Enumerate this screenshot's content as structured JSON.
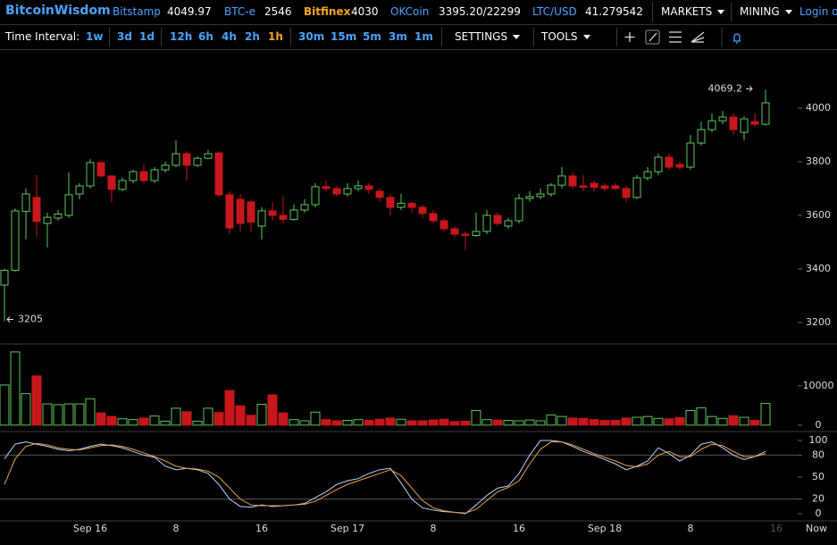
{
  "header": {
    "brand": "BitcoinWisdom",
    "tickers": [
      {
        "name": "Bitstamp",
        "price": "4049.97"
      },
      {
        "name": "BTC-e",
        "price": "2546"
      },
      {
        "name": "Bitfinex",
        "price": "4030"
      },
      {
        "name": "OKCoin",
        "price": "3395.20/22299"
      },
      {
        "name": "LTC/USD",
        "price": "41.279542"
      }
    ],
    "menus": [
      "MARKETS",
      "MINING"
    ],
    "login": "Login or"
  },
  "toolbar": {
    "label": "Time Interval:",
    "intervals": [
      "1w",
      "3d",
      "1d",
      "12h",
      "6h",
      "4h",
      "2h",
      "1h",
      "30m",
      "15m",
      "5m",
      "3m",
      "1m"
    ],
    "active": "1h",
    "menus": [
      "SETTINGS",
      "TOOLS"
    ]
  },
  "chart_data": [
    {
      "type": "candlestick",
      "categories": [
        null,
        null,
        null,
        null,
        null,
        null,
        null,
        null,
        "Sep 16",
        null,
        null,
        null,
        null,
        null,
        null,
        null,
        "8",
        null,
        null,
        null,
        null,
        null,
        null,
        null,
        "16",
        null,
        null,
        null,
        null,
        null,
        null,
        null,
        "Sep 17",
        null,
        null,
        null,
        null,
        null,
        null,
        null,
        "8",
        null,
        null,
        null,
        null,
        null,
        null,
        null,
        "16",
        null,
        null,
        null,
        null,
        null,
        null,
        null,
        "Sep 18",
        null,
        null,
        null,
        null,
        null,
        null,
        null,
        "8",
        null,
        null,
        null,
        null,
        null,
        null,
        null,
        "16"
      ],
      "now_label": "Now",
      "open": [
        3340,
        3395,
        3615,
        3667,
        3570,
        3590,
        3600,
        3680,
        3710,
        3797,
        3747,
        3697,
        3730,
        3763,
        3730,
        3770,
        3787,
        3830,
        3787,
        3813,
        3833,
        3677,
        3660,
        3650,
        3560,
        3617,
        3600,
        3585,
        3620,
        3640,
        3707,
        3700,
        3680,
        3700,
        3710,
        3690,
        3667,
        3630,
        3645,
        3630,
        3607,
        3580,
        3550,
        3530,
        3525,
        3540,
        3600,
        3560,
        3580,
        3663,
        3670,
        3680,
        3713,
        3747,
        3710,
        3720,
        3710,
        3710,
        3700,
        3667,
        3740,
        3763,
        3817,
        3790,
        3780,
        3870,
        3920,
        3953,
        3967,
        3910,
        3950,
        3940,
        null
      ],
      "high": [
        3400,
        3625,
        3700,
        3750,
        3610,
        3620,
        3760,
        3720,
        3810,
        3800,
        3750,
        3740,
        3770,
        3790,
        3780,
        3800,
        3880,
        3840,
        3820,
        3845,
        3840,
        3690,
        3680,
        3660,
        3630,
        3650,
        3670,
        3640,
        3660,
        3720,
        3730,
        3710,
        3720,
        3730,
        3720,
        3700,
        3680,
        3680,
        3650,
        3640,
        3620,
        3590,
        3560,
        3540,
        3610,
        3620,
        3610,
        3590,
        3680,
        3690,
        3700,
        3720,
        3780,
        3760,
        3750,
        3730,
        3720,
        3720,
        3710,
        3750,
        3780,
        3830,
        3830,
        3800,
        3900,
        3950,
        3980,
        3990,
        3980,
        3970,
        3980,
        4069.2,
        null
      ],
      "low": [
        3205,
        3390,
        3510,
        3520,
        3480,
        3580,
        3590,
        3660,
        3700,
        3740,
        3650,
        3690,
        3720,
        3720,
        3720,
        3760,
        3780,
        3730,
        3780,
        3810,
        3670,
        3530,
        3540,
        3540,
        3510,
        3580,
        3570,
        3580,
        3610,
        3630,
        3690,
        3670,
        3670,
        3690,
        3680,
        3650,
        3600,
        3620,
        3610,
        3590,
        3570,
        3540,
        3520,
        3470,
        3520,
        3530,
        3560,
        3550,
        3570,
        3650,
        3660,
        3670,
        3700,
        3700,
        3690,
        3690,
        3690,
        3695,
        3650,
        3660,
        3730,
        3750,
        3770,
        3770,
        3770,
        3860,
        3910,
        3940,
        3900,
        3880,
        3930,
        3935,
        null
      ],
      "close": [
        3395,
        3617,
        3680,
        3577,
        3593,
        3605,
        3677,
        3710,
        3797,
        3747,
        3697,
        3730,
        3763,
        3730,
        3770,
        3787,
        3830,
        3787,
        3813,
        3830,
        3677,
        3553,
        3570,
        3575,
        3617,
        3600,
        3585,
        3620,
        3640,
        3707,
        3700,
        3680,
        3700,
        3710,
        3697,
        3667,
        3630,
        3645,
        3630,
        3607,
        3580,
        3550,
        3530,
        3525,
        3540,
        3600,
        3570,
        3580,
        3663,
        3670,
        3680,
        3713,
        3747,
        3710,
        3705,
        3705,
        3700,
        3700,
        3667,
        3740,
        3763,
        3817,
        3780,
        3780,
        3870,
        3920,
        3953,
        3967,
        3920,
        3960,
        3940,
        4020,
        null
      ],
      "up_color": "#5fc65f",
      "down_color": "#c8161d",
      "ylim": [
        3120,
        4217
      ],
      "yticks": [
        3200,
        3400,
        3600,
        3800,
        4000
      ]
    },
    {
      "type": "bar",
      "values": [
        10200,
        18600,
        8000,
        12500,
        5400,
        5200,
        5400,
        5400,
        6700,
        3100,
        2200,
        1600,
        1400,
        1800,
        2300,
        1000,
        4300,
        3400,
        1000,
        4300,
        3200,
        8800,
        4900,
        2500,
        5300,
        7700,
        3100,
        1400,
        1100,
        3300,
        1400,
        1100,
        1200,
        1400,
        1200,
        1500,
        1800,
        1500,
        1100,
        1100,
        1300,
        1500,
        900,
        1000,
        3700,
        1400,
        1300,
        1200,
        1100,
        1300,
        1100,
        2600,
        2200,
        1800,
        1700,
        1400,
        1200,
        1200,
        1800,
        2000,
        2200,
        1700,
        1600,
        1900,
        3700,
        4400,
        2200,
        1700,
        2400,
        2000,
        1200,
        5500,
        null
      ],
      "ylim": [
        -1400,
        20400
      ],
      "yticks": [
        0,
        10000
      ]
    },
    {
      "type": "line",
      "series": [
        {
          "color": "#b8d4ff",
          "values": [
            75,
            95,
            98,
            95,
            92,
            88,
            86,
            88,
            92,
            95,
            93,
            90,
            85,
            80,
            77,
            65,
            60,
            62,
            60,
            55,
            40,
            20,
            10,
            9,
            12,
            10,
            11,
            12,
            14,
            22,
            30,
            40,
            45,
            48,
            55,
            60,
            62,
            42,
            20,
            8,
            5,
            3,
            2,
            0,
            12,
            25,
            35,
            38,
            55,
            80,
            100,
            100,
            98,
            92,
            85,
            80,
            74,
            68,
            60,
            65,
            72,
            90,
            82,
            72,
            80,
            95,
            98,
            90,
            80,
            74,
            78,
            85,
            null
          ]
        },
        {
          "color": "#e9a243",
          "values": [
            40,
            75,
            92,
            96,
            94,
            90,
            88,
            87,
            90,
            93,
            94,
            92,
            88,
            83,
            78,
            72,
            65,
            62,
            61,
            58,
            50,
            35,
            20,
            12,
            11,
            11,
            11,
            12,
            13,
            17,
            25,
            33,
            40,
            45,
            50,
            55,
            60,
            52,
            35,
            18,
            8,
            4,
            2,
            1,
            6,
            18,
            30,
            36,
            45,
            68,
            88,
            98,
            98,
            94,
            88,
            82,
            77,
            72,
            66,
            64,
            68,
            80,
            85,
            78,
            78,
            88,
            95,
            93,
            85,
            78,
            78,
            82,
            null
          ]
        }
      ],
      "ylim": [
        -8.5,
        111
      ],
      "yticks": [
        0,
        20,
        50,
        80,
        100
      ],
      "grid_lines": [
        80,
        20
      ]
    }
  ]
}
